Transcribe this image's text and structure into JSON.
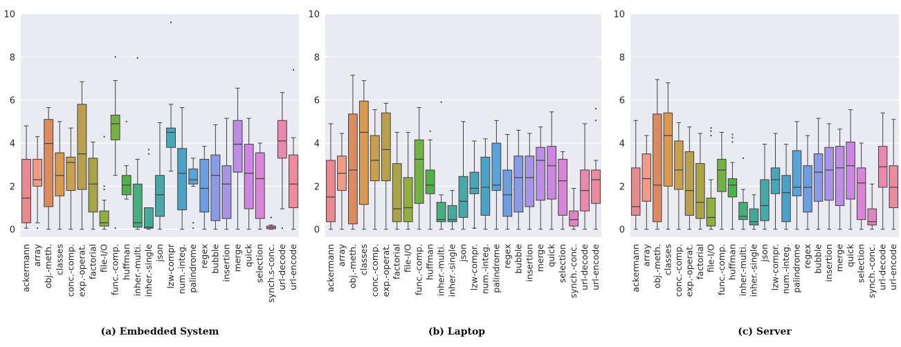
{
  "chart_data": [
    {
      "type": "box",
      "title": "(a) Embedded System",
      "ylim": [
        0,
        10
      ],
      "yticks": [
        0,
        2,
        4,
        6,
        8,
        10
      ],
      "grid": true,
      "categories": [
        "ackermann",
        "array",
        "obj.-meth.",
        "classes",
        "conc.-comp.",
        "exp.-operat.",
        "factorial",
        "file-I/O",
        "func.-comp.",
        "huffman",
        "inher.-multi.",
        "inher.-single",
        "json",
        "lzw-compr",
        "num.-integ.",
        "palindrome",
        "regex",
        "bubble",
        "insertion",
        "merge",
        "quick",
        "selection",
        "synch.s-conc.",
        "url-decode",
        "url-encode"
      ],
      "boxes": [
        {
          "q1": 0.3,
          "med": 1.45,
          "q3": 3.25,
          "wlo": 0.05,
          "whi": 4.8,
          "fliers": []
        },
        {
          "q1": 2.0,
          "med": 2.3,
          "q3": 3.25,
          "wlo": 0.3,
          "whi": 4.3,
          "fliers": [
            0.05
          ]
        },
        {
          "q1": 1.05,
          "med": 3.98,
          "q3": 5.1,
          "wlo": 0.0,
          "whi": 5.65,
          "fliers": []
        },
        {
          "q1": 1.55,
          "med": 2.5,
          "q3": 3.55,
          "wlo": 0.0,
          "whi": 5.0,
          "fliers": []
        },
        {
          "q1": 1.8,
          "med": 3.1,
          "q3": 3.35,
          "wlo": 0.0,
          "whi": 4.7,
          "fliers": []
        },
        {
          "q1": 1.85,
          "med": 3.5,
          "q3": 5.8,
          "wlo": 0.0,
          "whi": 6.85,
          "fliers": []
        },
        {
          "q1": 0.8,
          "med": 2.1,
          "q3": 3.3,
          "wlo": 0.0,
          "whi": 4.05,
          "fliers": []
        },
        {
          "q1": 0.15,
          "med": 0.3,
          "q3": 0.85,
          "wlo": 0.0,
          "whi": 1.35,
          "fliers": [
            1.85,
            2.0,
            4.3
          ]
        },
        {
          "q1": 4.15,
          "med": 4.9,
          "q3": 5.3,
          "wlo": 2.5,
          "whi": 6.9,
          "fliers": [
            8.0,
            0.05
          ]
        },
        {
          "q1": 1.6,
          "med": 2.05,
          "q3": 2.5,
          "wlo": 1.4,
          "whi": 2.95,
          "fliers": [
            5.0
          ]
        },
        {
          "q1": 0.1,
          "med": 0.3,
          "q3": 2.1,
          "wlo": 0.0,
          "whi": 3.25,
          "fliers": [
            7.95
          ]
        },
        {
          "q1": 0.05,
          "med": 0.1,
          "q3": 1.0,
          "wlo": 0.0,
          "whi": 1.0,
          "fliers": [
            3.5,
            3.7
          ]
        },
        {
          "q1": 0.6,
          "med": 1.6,
          "q3": 2.5,
          "wlo": 0.0,
          "whi": 4.95,
          "fliers": []
        },
        {
          "q1": 3.8,
          "med": 4.5,
          "q3": 4.7,
          "wlo": 2.7,
          "whi": 5.8,
          "fliers": [
            9.6
          ]
        },
        {
          "q1": 0.9,
          "med": 2.6,
          "q3": 3.75,
          "wlo": 0.0,
          "whi": 5.65,
          "fliers": []
        },
        {
          "q1": 2.1,
          "med": 2.3,
          "q3": 2.8,
          "wlo": 2.0,
          "whi": 3.3,
          "fliers": [
            0.3,
            0.05
          ]
        },
        {
          "q1": 0.8,
          "med": 1.9,
          "q3": 3.25,
          "wlo": 0.0,
          "whi": 3.85,
          "fliers": []
        },
        {
          "q1": 0.4,
          "med": 2.5,
          "q3": 3.45,
          "wlo": 0.0,
          "whi": 4.85,
          "fliers": []
        },
        {
          "q1": 0.5,
          "med": 2.1,
          "q3": 2.95,
          "wlo": 0.0,
          "whi": 5.15,
          "fliers": []
        },
        {
          "q1": 2.65,
          "med": 3.95,
          "q3": 5.05,
          "wlo": 0.0,
          "whi": 6.55,
          "fliers": []
        },
        {
          "q1": 0.95,
          "med": 2.6,
          "q3": 3.95,
          "wlo": 0.0,
          "whi": 5.15,
          "fliers": []
        },
        {
          "q1": 0.5,
          "med": 2.35,
          "q3": 3.55,
          "wlo": 0.0,
          "whi": 4.0,
          "fliers": []
        },
        {
          "q1": 0.02,
          "med": 0.08,
          "q3": 0.15,
          "wlo": 0.0,
          "whi": 0.2,
          "fliers": [
            0.55
          ]
        },
        {
          "q1": 3.3,
          "med": 4.1,
          "q3": 5.05,
          "wlo": 0.95,
          "whi": 6.35,
          "fliers": [
            0.05
          ]
        },
        {
          "q1": 1.0,
          "med": 2.1,
          "q3": 3.45,
          "wlo": 0.0,
          "whi": 4.25,
          "fliers": [
            7.4
          ]
        }
      ]
    },
    {
      "type": "box",
      "title": "(b) Laptop",
      "ylim": [
        0,
        10
      ],
      "yticks": [
        0,
        2,
        4,
        6,
        8,
        10
      ],
      "grid": true,
      "categories": [
        "ackermann",
        "array",
        "obj.-meth.",
        "classes",
        "conc.-comp.",
        "exp.-operat.",
        "factorial",
        "file-I/O",
        "func.-comp.",
        "huffman",
        "inher.-multi.",
        "inher.-single",
        "json",
        "lzw-compr.",
        "num.-integ.",
        "palindrome",
        "regex",
        "bubble",
        "insertion",
        "merge",
        "quick",
        "selection",
        "synch.-conc.",
        "url-decode",
        "url-encode"
      ],
      "boxes": [
        {
          "q1": 0.35,
          "med": 1.5,
          "q3": 3.2,
          "wlo": 0.0,
          "whi": 4.9,
          "fliers": []
        },
        {
          "q1": 1.8,
          "med": 2.6,
          "q3": 3.4,
          "wlo": 0.0,
          "whi": 4.45,
          "fliers": []
        },
        {
          "q1": 0.25,
          "med": 2.75,
          "q3": 5.35,
          "wlo": 0.0,
          "whi": 7.15,
          "fliers": []
        },
        {
          "q1": 1.15,
          "med": 4.5,
          "q3": 5.95,
          "wlo": 0.0,
          "whi": 6.9,
          "fliers": []
        },
        {
          "q1": 2.25,
          "med": 3.2,
          "q3": 4.35,
          "wlo": 0.0,
          "whi": 5.55,
          "fliers": []
        },
        {
          "q1": 2.25,
          "med": 3.7,
          "q3": 5.4,
          "wlo": 0.0,
          "whi": 5.85,
          "fliers": []
        },
        {
          "q1": 0.35,
          "med": 0.95,
          "q3": 3.05,
          "wlo": 0.0,
          "whi": 4.5,
          "fliers": []
        },
        {
          "q1": 0.35,
          "med": 1.0,
          "q3": 2.4,
          "wlo": 0.0,
          "whi": 4.5,
          "fliers": []
        },
        {
          "q1": 1.2,
          "med": 3.25,
          "q3": 4.15,
          "wlo": 0.0,
          "whi": 5.65,
          "fliers": []
        },
        {
          "q1": 1.65,
          "med": 2.05,
          "q3": 2.75,
          "wlo": 0.0,
          "whi": 4.15,
          "fliers": [
            4.55
          ]
        },
        {
          "q1": 0.35,
          "med": 0.45,
          "q3": 1.25,
          "wlo": 0.0,
          "whi": 1.6,
          "fliers": [
            5.9
          ]
        },
        {
          "q1": 0.35,
          "med": 0.45,
          "q3": 1.1,
          "wlo": 0.0,
          "whi": 1.8,
          "fliers": []
        },
        {
          "q1": 0.55,
          "med": 1.3,
          "q3": 2.45,
          "wlo": 0.0,
          "whi": 5.0,
          "fliers": []
        },
        {
          "q1": 1.65,
          "med": 1.9,
          "q3": 2.65,
          "wlo": 0.05,
          "whi": 4.1,
          "fliers": [
            0.05
          ]
        },
        {
          "q1": 0.65,
          "med": 1.95,
          "q3": 3.35,
          "wlo": 0.0,
          "whi": 4.2,
          "fliers": []
        },
        {
          "q1": 1.8,
          "med": 2.05,
          "q3": 4.0,
          "wlo": 0.0,
          "whi": 5.05,
          "fliers": []
        },
        {
          "q1": 0.6,
          "med": 1.6,
          "q3": 2.75,
          "wlo": 0.0,
          "whi": 4.4,
          "fliers": []
        },
        {
          "q1": 0.8,
          "med": 2.4,
          "q3": 3.4,
          "wlo": 0.0,
          "whi": 4.6,
          "fliers": []
        },
        {
          "q1": 1.05,
          "med": 2.4,
          "q3": 3.4,
          "wlo": 0.0,
          "whi": 4.45,
          "fliers": []
        },
        {
          "q1": 1.35,
          "med": 3.2,
          "q3": 3.8,
          "wlo": 0.0,
          "whi": 4.75,
          "fliers": []
        },
        {
          "q1": 1.4,
          "med": 2.95,
          "q3": 3.85,
          "wlo": 0.0,
          "whi": 5.45,
          "fliers": []
        },
        {
          "q1": 0.65,
          "med": 2.25,
          "q3": 3.25,
          "wlo": 0.0,
          "whi": 3.6,
          "fliers": []
        },
        {
          "q1": 0.15,
          "med": 0.45,
          "q3": 0.85,
          "wlo": 0.0,
          "whi": 1.9,
          "fliers": []
        },
        {
          "q1": 0.85,
          "med": 1.8,
          "q3": 2.75,
          "wlo": 0.0,
          "whi": 4.9,
          "fliers": []
        },
        {
          "q1": 1.2,
          "med": 2.3,
          "q3": 2.75,
          "wlo": 0.0,
          "whi": 3.2,
          "fliers": [
            5.05,
            5.6
          ]
        }
      ]
    },
    {
      "type": "box",
      "title": "(c) Server",
      "ylim": [
        0,
        10
      ],
      "yticks": [
        0,
        2,
        4,
        6,
        8,
        10
      ],
      "grid": true,
      "categories": [
        "ackermann",
        "array",
        "obj.-meth.",
        "classes",
        "conc.-comp.",
        "exp.-operat.",
        "factorial",
        "file-I/O",
        "func.-comp.",
        "huffman",
        "inher.-multi.",
        "inher.-single",
        "json",
        "lzw-compr.",
        "num.-integ.",
        "palindrome",
        "regex",
        "bubble",
        "insertion",
        "merge",
        "quick",
        "selection",
        "synch.-conc.",
        "url-decode",
        "url-encode"
      ],
      "boxes": [
        {
          "q1": 0.65,
          "med": 1.05,
          "q3": 2.85,
          "wlo": 0.0,
          "whi": 5.05,
          "fliers": []
        },
        {
          "q1": 1.3,
          "med": 2.35,
          "q3": 3.5,
          "wlo": 0.0,
          "whi": 4.35,
          "fliers": []
        },
        {
          "q1": 0.35,
          "med": 2.05,
          "q3": 5.35,
          "wlo": 0.0,
          "whi": 6.95,
          "fliers": []
        },
        {
          "q1": 2.0,
          "med": 4.35,
          "q3": 5.4,
          "wlo": 0.0,
          "whi": 6.8,
          "fliers": []
        },
        {
          "q1": 1.85,
          "med": 2.75,
          "q3": 4.1,
          "wlo": 0.0,
          "whi": 4.95,
          "fliers": []
        },
        {
          "q1": 0.65,
          "med": 1.8,
          "q3": 3.6,
          "wlo": 0.0,
          "whi": 4.75,
          "fliers": []
        },
        {
          "q1": 0.5,
          "med": 1.25,
          "q3": 3.05,
          "wlo": 0.0,
          "whi": 4.45,
          "fliers": []
        },
        {
          "q1": 0.15,
          "med": 0.55,
          "q3": 1.45,
          "wlo": 0.0,
          "whi": 2.3,
          "fliers": [
            4.35,
            4.55,
            4.7
          ]
        },
        {
          "q1": 1.75,
          "med": 2.75,
          "q3": 3.25,
          "wlo": 0.0,
          "whi": 4.5,
          "fliers": []
        },
        {
          "q1": 1.5,
          "med": 2.05,
          "q3": 2.35,
          "wlo": 0.0,
          "whi": 3.1,
          "fliers": [
            4.05,
            4.25,
            4.4
          ]
        },
        {
          "q1": 0.45,
          "med": 0.6,
          "q3": 1.25,
          "wlo": 0.0,
          "whi": 1.85,
          "fliers": [
            3.3
          ]
        },
        {
          "q1": 0.2,
          "med": 0.35,
          "q3": 0.95,
          "wlo": 0.0,
          "whi": 1.6,
          "fliers": []
        },
        {
          "q1": 0.4,
          "med": 1.1,
          "q3": 2.3,
          "wlo": 0.0,
          "whi": 3.95,
          "fliers": []
        },
        {
          "q1": 1.65,
          "med": 2.3,
          "q3": 2.85,
          "wlo": 0.0,
          "whi": 4.45,
          "fliers": []
        },
        {
          "q1": 0.35,
          "med": 1.7,
          "q3": 2.5,
          "wlo": 0.0,
          "whi": 3.95,
          "fliers": []
        },
        {
          "q1": 1.55,
          "med": 1.95,
          "q3": 3.65,
          "wlo": 0.0,
          "whi": 5.0,
          "fliers": []
        },
        {
          "q1": 0.8,
          "med": 1.95,
          "q3": 2.95,
          "wlo": 0.0,
          "whi": 4.35,
          "fliers": []
        },
        {
          "q1": 1.3,
          "med": 2.65,
          "q3": 3.5,
          "wlo": 0.0,
          "whi": 5.15,
          "fliers": []
        },
        {
          "q1": 1.35,
          "med": 2.75,
          "q3": 3.8,
          "wlo": 0.0,
          "whi": 4.9,
          "fliers": []
        },
        {
          "q1": 1.1,
          "med": 2.85,
          "q3": 3.85,
          "wlo": 0.0,
          "whi": 4.65,
          "fliers": []
        },
        {
          "q1": 1.4,
          "med": 2.95,
          "q3": 4.05,
          "wlo": 0.0,
          "whi": 5.55,
          "fliers": []
        },
        {
          "q1": 0.45,
          "med": 2.15,
          "q3": 2.85,
          "wlo": 0.0,
          "whi": 4.0,
          "fliers": []
        },
        {
          "q1": 0.2,
          "med": 0.35,
          "q3": 0.95,
          "wlo": 0.0,
          "whi": 2.1,
          "fliers": []
        },
        {
          "q1": 1.95,
          "med": 2.9,
          "q3": 3.85,
          "wlo": 0.0,
          "whi": 5.4,
          "fliers": []
        },
        {
          "q1": 1.0,
          "med": 1.95,
          "q3": 2.95,
          "wlo": 0.0,
          "whi": 5.1,
          "fliers": []
        }
      ]
    }
  ],
  "palette": [
    "#e8888f",
    "#f19a87",
    "#dc8a60",
    "#d99a50",
    "#c8a050",
    "#ba9f4f",
    "#a9a448",
    "#92ae3e",
    "#73b145",
    "#52b04a",
    "#45ad7e",
    "#47aa97",
    "#48a8a8",
    "#48a6b7",
    "#4aa3c6",
    "#5aa3d9",
    "#6d9fe0",
    "#8b9ae4",
    "#a894e4",
    "#bb8de5",
    "#cc85e3",
    "#d985d6",
    "#e185c0",
    "#e889ad",
    "#eb8b9d"
  ]
}
